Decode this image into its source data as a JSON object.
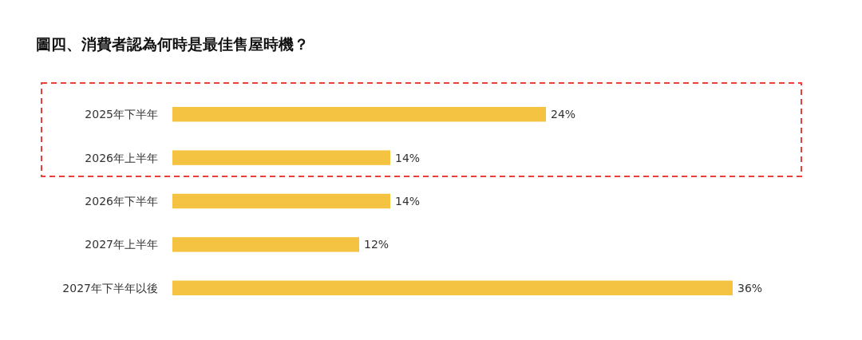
{
  "chart_data": {
    "type": "bar",
    "orientation": "horizontal",
    "title": "圖四、消費者認為何時是最佳售屋時機？",
    "categories": [
      "2025年下半年",
      "2026年上半年",
      "2026年下半年",
      "2027年上半年",
      "2027年下半年以後"
    ],
    "values": [
      24,
      14,
      14,
      12,
      36
    ],
    "value_labels": [
      "24%",
      "14%",
      "14%",
      "12%",
      "36%"
    ],
    "color": "#f5c342"
  }
}
